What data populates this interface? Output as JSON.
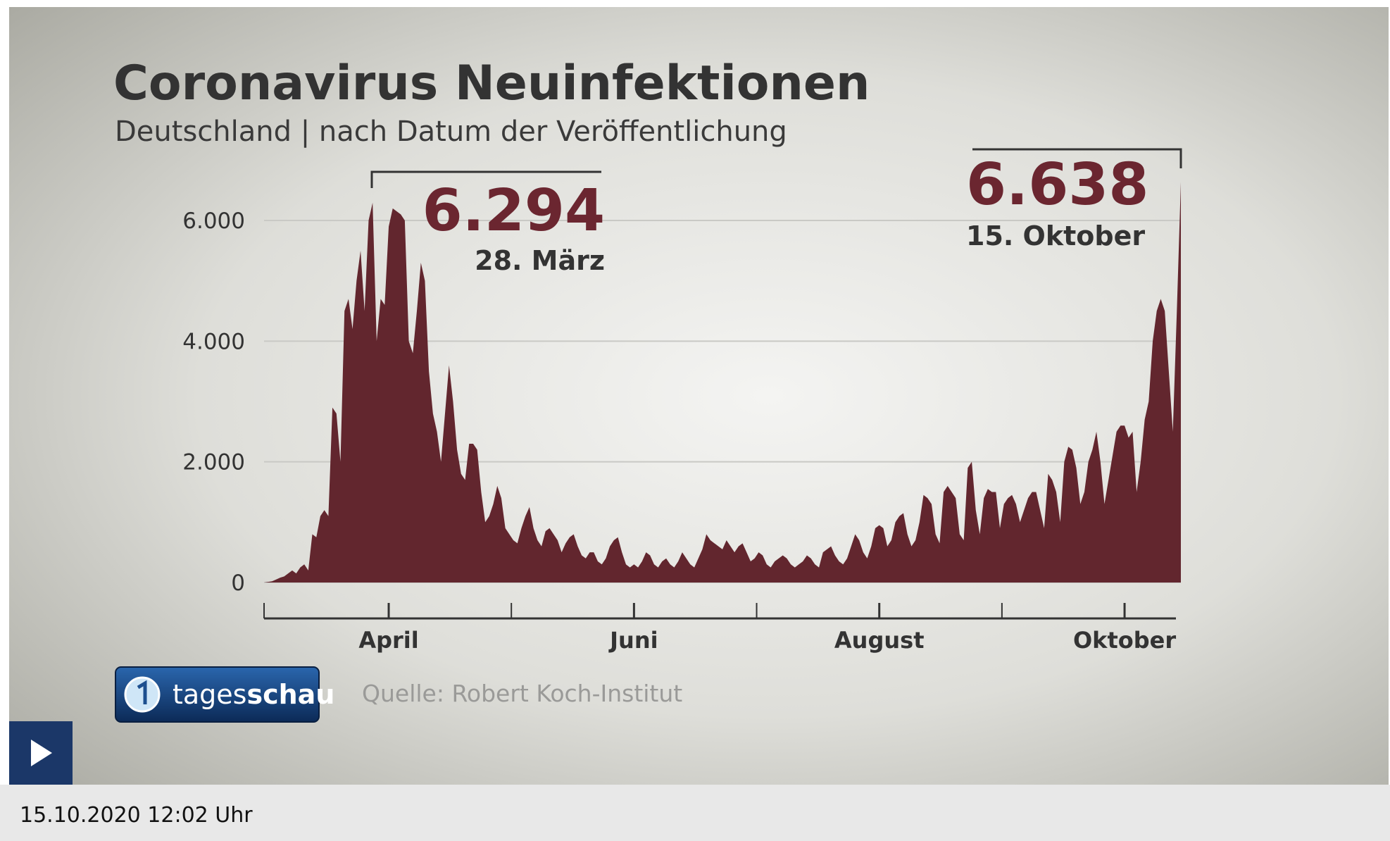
{
  "player": {
    "timestamp": "15.10.2020 12:02 Uhr"
  },
  "chart_data": {
    "type": "area",
    "title": "Coronavirus Neuinfektionen",
    "subtitle": "Deutschland | nach Datum der Veröffentlichung",
    "source": "Quelle: Robert Koch-Institut",
    "logo": [
      "tages",
      "schau"
    ],
    "color": "#62262e",
    "grid": true,
    "ylim": [
      0,
      7000
    ],
    "yticks": [
      0,
      {
        "value": 2000,
        "label": "2.000"
      },
      {
        "value": 4000,
        "label": "4.000"
      },
      {
        "value": 6000,
        "label": "6.000"
      }
    ],
    "annotations": [
      {
        "text": "6.294",
        "date": "28. März"
      },
      {
        "text": "6.638",
        "date": "15. Oktober"
      }
    ],
    "categories": [
      null,
      null,
      null,
      null,
      null,
      null,
      null,
      null,
      null,
      null,
      null,
      null,
      null,
      null,
      null,
      null,
      null,
      null,
      null,
      null,
      null,
      null,
      null,
      null,
      null,
      null,
      null,
      null,
      null,
      null,
      null,
      "April",
      null,
      null,
      null,
      null,
      null,
      null,
      null,
      null,
      null,
      null,
      null,
      null,
      null,
      null,
      null,
      null,
      null,
      null,
      null,
      null,
      null,
      null,
      null,
      null,
      null,
      null,
      null,
      null,
      null,
      null,
      null,
      null,
      null,
      null,
      null,
      null,
      null,
      null,
      null,
      null,
      null,
      null,
      null,
      null,
      null,
      null,
      null,
      null,
      null,
      null,
      null,
      null,
      null,
      null,
      null,
      null,
      null,
      null,
      null,
      null,
      "Juni",
      null,
      null,
      null,
      null,
      null,
      null,
      null,
      null,
      null,
      null,
      null,
      null,
      null,
      null,
      null,
      null,
      null,
      null,
      null,
      null,
      null,
      null,
      null,
      null,
      null,
      null,
      null,
      null,
      null,
      null,
      null,
      null,
      null,
      null,
      null,
      null,
      null,
      null,
      null,
      null,
      null,
      null,
      null,
      null,
      null,
      null,
      null,
      null,
      null,
      null,
      null,
      null,
      null,
      null,
      null,
      null,
      null,
      null,
      null,
      null,
      "August",
      null,
      null,
      null,
      null,
      null,
      null,
      null,
      null,
      null,
      null,
      null,
      null,
      null,
      null,
      null,
      null,
      null,
      null,
      null,
      null,
      null,
      null,
      null,
      null,
      null,
      null,
      null,
      null,
      null,
      null,
      null,
      null,
      null,
      null,
      null,
      null,
      null,
      null,
      null,
      null,
      null,
      null,
      null,
      null,
      null,
      null,
      null,
      null,
      null,
      null,
      null,
      null,
      null,
      null,
      null,
      null,
      null,
      null,
      null,
      null,
      "Oktober",
      null,
      null,
      null,
      null,
      null,
      null,
      null,
      null,
      null,
      null,
      null,
      null,
      null,
      null
    ],
    "values": [
      0,
      10,
      20,
      50,
      80,
      100,
      150,
      200,
      150,
      250,
      300,
      200,
      800,
      750,
      1100,
      1200,
      1100,
      2900,
      2800,
      2000,
      4500,
      4700,
      4200,
      5000,
      5500,
      4500,
      6000,
      6294,
      4000,
      4700,
      4600,
      5900,
      6200,
      6150,
      6100,
      6000,
      4000,
      3800,
      4500,
      5300,
      5000,
      3500,
      2800,
      2500,
      2000,
      2800,
      3600,
      3000,
      2200,
      1800,
      1700,
      2300,
      2300,
      2200,
      1500,
      1000,
      1100,
      1300,
      1600,
      1400,
      900,
      800,
      700,
      650,
      900,
      1100,
      1250,
      900,
      700,
      600,
      850,
      900,
      800,
      700,
      500,
      650,
      750,
      800,
      600,
      450,
      400,
      500,
      500,
      350,
      300,
      400,
      600,
      700,
      750,
      500,
      300,
      250,
      300,
      250,
      350,
      500,
      450,
      300,
      250,
      350,
      400,
      300,
      250,
      350,
      500,
      400,
      300,
      250,
      400,
      550,
      800,
      700,
      650,
      600,
      550,
      700,
      600,
      500,
      600,
      650,
      500,
      350,
      400,
      500,
      450,
      300,
      250,
      350,
      400,
      450,
      400,
      300,
      250,
      300,
      350,
      450,
      400,
      300,
      250,
      500,
      550,
      600,
      450,
      350,
      300,
      400,
      600,
      800,
      700,
      500,
      400,
      600,
      900,
      950,
      900,
      600,
      700,
      1000,
      1100,
      1150,
      800,
      600,
      700,
      1000,
      1450,
      1400,
      1300,
      800,
      650,
      1500,
      1600,
      1500,
      1400,
      800,
      700,
      1900,
      2000,
      1200,
      800,
      1400,
      1550,
      1500,
      1500,
      900,
      1300,
      1400,
      1450,
      1300,
      1000,
      1200,
      1400,
      1500,
      1500,
      1200,
      900,
      1800,
      1700,
      1500,
      1000,
      2000,
      2250,
      2200,
      1900,
      1300,
      1500,
      2000,
      2200,
      2500,
      2000,
      1300,
      1700,
      2100,
      2500,
      2600,
      2600,
      2400,
      2500,
      1500,
      2000,
      2700,
      3000,
      4000,
      4500,
      4700,
      4500,
      3500,
      2500,
      4500,
      6638
    ]
  }
}
